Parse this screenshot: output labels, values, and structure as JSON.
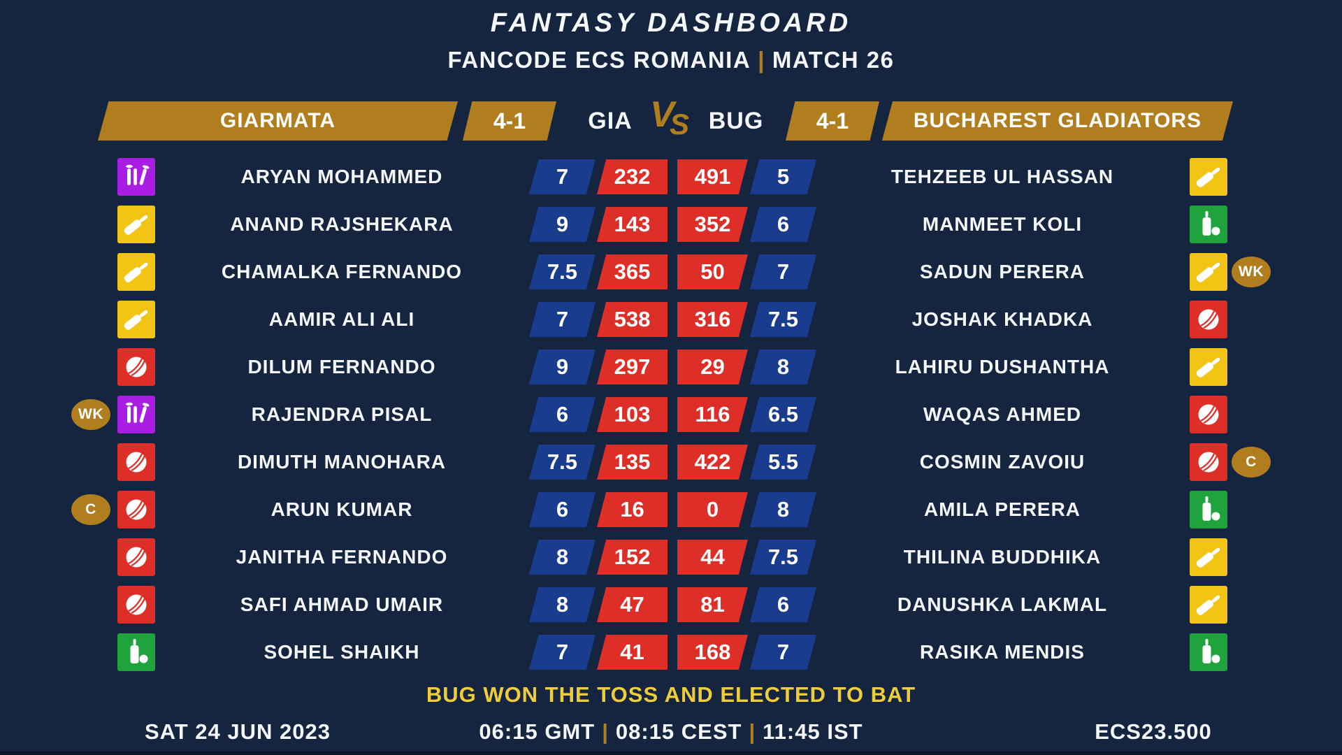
{
  "title": "FANTASY DASHBOARD",
  "subtitle": {
    "league": "FANCODE ECS ROMANIA",
    "separator": "|",
    "match": "MATCH 26"
  },
  "header": {
    "left_team": "GIARMATA",
    "left_record": "4-1",
    "left_code": "GIA",
    "vs_v": "V",
    "vs_s": "S",
    "right_code": "BUG",
    "right_record": "4-1",
    "right_team": "BUCHAREST GLADIATORS"
  },
  "players": [
    {
      "left": {
        "badge": "",
        "role": "wicketkeeper",
        "name": "ARYAN MOHAMMED",
        "credit": "7",
        "points": "232"
      },
      "right": {
        "points": "491",
        "credit": "5",
        "name": "TEHZEEB UL HASSAN",
        "role": "batter",
        "badge": ""
      }
    },
    {
      "left": {
        "badge": "",
        "role": "batter",
        "name": "ANAND RAJSHEKARA",
        "credit": "9",
        "points": "143"
      },
      "right": {
        "points": "352",
        "credit": "6",
        "name": "MANMEET KOLI",
        "role": "allrounder",
        "badge": ""
      }
    },
    {
      "left": {
        "badge": "",
        "role": "batter",
        "name": "CHAMALKA FERNANDO",
        "credit": "7.5",
        "points": "365"
      },
      "right": {
        "points": "50",
        "credit": "7",
        "name": "SADUN PERERA",
        "role": "batter",
        "badge": "WK"
      }
    },
    {
      "left": {
        "badge": "",
        "role": "batter",
        "name": "AAMIR ALI ALI",
        "credit": "7",
        "points": "538"
      },
      "right": {
        "points": "316",
        "credit": "7.5",
        "name": "JOSHAK KHADKA",
        "role": "bowler",
        "badge": ""
      }
    },
    {
      "left": {
        "badge": "",
        "role": "bowler",
        "name": "DILUM FERNANDO",
        "credit": "9",
        "points": "297"
      },
      "right": {
        "points": "29",
        "credit": "8",
        "name": "LAHIRU DUSHANTHA",
        "role": "batter",
        "badge": ""
      }
    },
    {
      "left": {
        "badge": "WK",
        "role": "wicketkeeper",
        "name": "RAJENDRA PISAL",
        "credit": "6",
        "points": "103"
      },
      "right": {
        "points": "116",
        "credit": "6.5",
        "name": "WAQAS AHMED",
        "role": "bowler",
        "badge": ""
      }
    },
    {
      "left": {
        "badge": "",
        "role": "bowler",
        "name": "DIMUTH MANOHARA",
        "credit": "7.5",
        "points": "135"
      },
      "right": {
        "points": "422",
        "credit": "5.5",
        "name": "COSMIN ZAVOIU",
        "role": "bowler",
        "badge": "C"
      }
    },
    {
      "left": {
        "badge": "C",
        "role": "bowler",
        "name": "ARUN KUMAR",
        "credit": "6",
        "points": "16"
      },
      "right": {
        "points": "0",
        "credit": "8",
        "name": "AMILA PERERA",
        "role": "allrounder",
        "badge": ""
      }
    },
    {
      "left": {
        "badge": "",
        "role": "bowler",
        "name": "JANITHA FERNANDO",
        "credit": "8",
        "points": "152"
      },
      "right": {
        "points": "44",
        "credit": "7.5",
        "name": "THILINA BUDDHIKA",
        "role": "batter",
        "badge": ""
      }
    },
    {
      "left": {
        "badge": "",
        "role": "bowler",
        "name": "SAFI AHMAD UMAIR",
        "credit": "8",
        "points": "47"
      },
      "right": {
        "points": "81",
        "credit": "6",
        "name": "DANUSHKA LAKMAL",
        "role": "batter",
        "badge": ""
      }
    },
    {
      "left": {
        "badge": "",
        "role": "allrounder",
        "name": "SOHEL SHAIKH",
        "credit": "7",
        "points": "41"
      },
      "right": {
        "points": "168",
        "credit": "7",
        "name": "RASIKA MENDIS",
        "role": "allrounder",
        "badge": ""
      }
    }
  ],
  "toss_note": "BUG WON THE TOSS AND ELECTED TO BAT",
  "footer": {
    "date": "SAT 24 JUN 2023",
    "times": [
      "06:15 GMT",
      "08:15 CEST",
      "11:45 IST"
    ],
    "separator": "|",
    "code": "ECS23.500"
  },
  "colors": {
    "background": "#16253f",
    "gold": "#b07e1e",
    "credit_blue": "#1a3c8f",
    "points_red": "#dd2f28",
    "batter_yellow": "#f2c514",
    "bowler_red": "#dd2f28",
    "allrounder_green": "#1fa33c",
    "wicketkeeper_purple": "#aa1ee4",
    "toss_yellow": "#edcd3a"
  }
}
